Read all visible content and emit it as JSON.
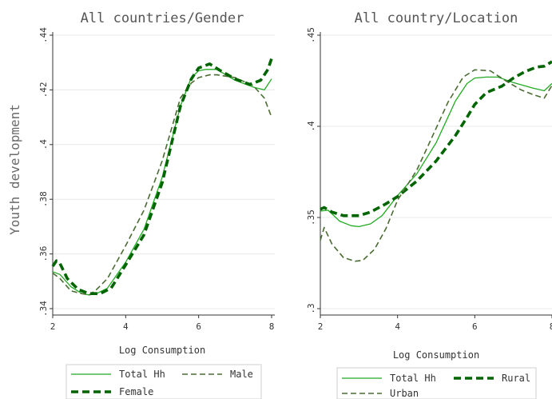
{
  "y_axis_title": "Youth development",
  "chart_data": [
    {
      "type": "line",
      "title": "All countries/Gender",
      "xlabel": "Log Consumption",
      "ylabel": "Youth development",
      "xlim": [
        2,
        8
      ],
      "ylim": [
        0.34,
        0.44
      ],
      "x_ticks": [
        2,
        4,
        6,
        8
      ],
      "x_tick_labels": [
        "2",
        "4",
        "6",
        "8"
      ],
      "y_ticks": [
        0.34,
        0.36,
        0.38,
        0.4,
        0.42,
        0.44
      ],
      "y_tick_labels": [
        ".34",
        ".36",
        ".38",
        ".4",
        ".42",
        ".44"
      ],
      "grid": true,
      "legend_position": "bottom",
      "series": [
        {
          "name": "Total Hh",
          "color": "#22aa22",
          "style": "solid",
          "x": [
            2.0,
            2.2,
            2.5,
            2.8,
            3.0,
            3.2,
            3.5,
            4.0,
            4.5,
            5.0,
            5.5,
            5.8,
            6.0,
            6.2,
            6.5,
            7.0,
            7.5,
            7.8,
            8.0
          ],
          "y": [
            0.3535,
            0.3525,
            0.348,
            0.3455,
            0.345,
            0.3455,
            0.3475,
            0.357,
            0.369,
            0.388,
            0.414,
            0.4245,
            0.427,
            0.4275,
            0.4275,
            0.4235,
            0.421,
            0.42,
            0.424
          ]
        },
        {
          "name": "Male",
          "color": "#4a6b32",
          "style": "dashed",
          "x": [
            2.0,
            2.2,
            2.5,
            2.8,
            3.0,
            3.2,
            3.5,
            4.0,
            4.5,
            5.0,
            5.5,
            5.8,
            6.0,
            6.3,
            6.5,
            7.0,
            7.5,
            7.8,
            8.0
          ],
          "y": [
            0.353,
            0.351,
            0.3465,
            0.3455,
            0.345,
            0.347,
            0.351,
            0.363,
            0.376,
            0.394,
            0.417,
            0.4225,
            0.4245,
            0.4255,
            0.4255,
            0.4245,
            0.4215,
            0.417,
            0.41
          ]
        },
        {
          "name": "Female",
          "color": "#006400",
          "style": "thick-dashed",
          "x": [
            2.0,
            2.1,
            2.2,
            2.4,
            2.7,
            3.0,
            3.3,
            3.6,
            4.0,
            4.5,
            5.0,
            5.5,
            5.8,
            6.0,
            6.3,
            6.6,
            7.0,
            7.4,
            7.7,
            7.9,
            8.0
          ],
          "y": [
            0.3555,
            0.3575,
            0.3565,
            0.351,
            0.347,
            0.3455,
            0.3455,
            0.3475,
            0.356,
            0.367,
            0.386,
            0.414,
            0.424,
            0.428,
            0.4295,
            0.427,
            0.424,
            0.422,
            0.4235,
            0.4275,
            0.4315
          ]
        }
      ]
    },
    {
      "type": "line",
      "title": "All country/Location",
      "xlabel": "Log Consumption",
      "ylabel": "",
      "xlim": [
        2,
        8
      ],
      "ylim": [
        0.3,
        0.45
      ],
      "x_ticks": [
        2,
        4,
        6,
        8
      ],
      "x_tick_labels": [
        "2",
        "4",
        "6",
        "8"
      ],
      "y_ticks": [
        0.3,
        0.35,
        0.4,
        0.45
      ],
      "y_tick_labels": [
        ".3",
        ".35",
        ".4",
        ".45"
      ],
      "grid": true,
      "legend_position": "bottom",
      "series": [
        {
          "name": "Total Hh",
          "color": "#22aa22",
          "style": "solid",
          "x": [
            2.0,
            2.2,
            2.5,
            2.8,
            3.0,
            3.3,
            3.6,
            4.0,
            4.5,
            5.0,
            5.5,
            5.8,
            6.0,
            6.3,
            6.6,
            7.0,
            7.5,
            7.8,
            8.0
          ],
          "y": [
            0.3535,
            0.354,
            0.348,
            0.3455,
            0.345,
            0.3465,
            0.351,
            0.362,
            0.374,
            0.391,
            0.414,
            0.4235,
            0.4265,
            0.427,
            0.427,
            0.424,
            0.421,
            0.4195,
            0.4235
          ]
        },
        {
          "name": "Rural",
          "color": "#006400",
          "style": "thick-dashed",
          "x": [
            2.0,
            2.1,
            2.3,
            2.6,
            3.0,
            3.3,
            3.7,
            4.0,
            4.5,
            5.0,
            5.5,
            5.8,
            6.0,
            6.3,
            6.7,
            7.0,
            7.3,
            7.6,
            7.8,
            8.0
          ],
          "y": [
            0.3545,
            0.3555,
            0.353,
            0.351,
            0.351,
            0.353,
            0.3575,
            0.3615,
            0.37,
            0.381,
            0.395,
            0.405,
            0.412,
            0.4185,
            0.422,
            0.4265,
            0.43,
            0.4325,
            0.433,
            0.4355
          ]
        },
        {
          "name": "Urban",
          "color": "#4a6b32",
          "style": "dashed",
          "x": [
            2.0,
            2.1,
            2.3,
            2.6,
            2.9,
            3.1,
            3.4,
            3.7,
            4.0,
            4.5,
            5.0,
            5.3,
            5.7,
            6.0,
            6.4,
            6.8,
            7.2,
            7.5,
            7.8,
            8.0
          ],
          "y": [
            0.3375,
            0.3445,
            0.3355,
            0.328,
            0.326,
            0.3265,
            0.3325,
            0.344,
            0.3595,
            0.376,
            0.399,
            0.413,
            0.427,
            0.431,
            0.4305,
            0.425,
            0.42,
            0.4175,
            0.4155,
            0.4225
          ]
        }
      ]
    }
  ]
}
